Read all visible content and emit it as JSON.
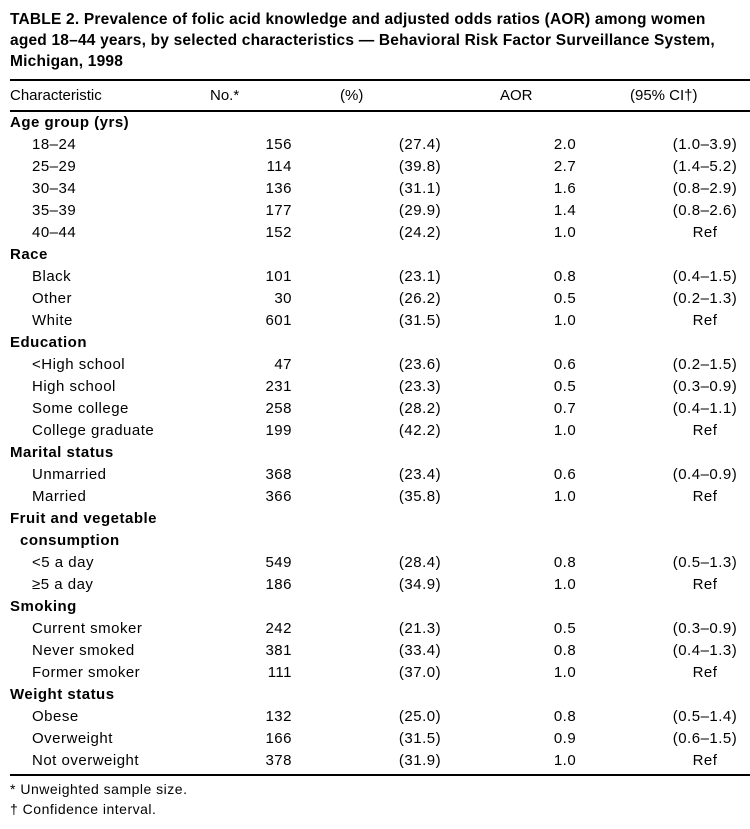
{
  "title": "TABLE 2. Prevalence of folic acid knowledge and adjusted odds ratios (AOR) among women aged 18–44 years, by selected characteristics — Behavioral Risk Factor Surveillance System, Michigan, 1998",
  "columns": {
    "characteristic": "Characteristic",
    "no": "No.*",
    "pct": "(%)",
    "aor": "AOR",
    "ci": "(95% CI†)"
  },
  "sections": [
    {
      "label": "Age group (yrs)",
      "rows": [
        {
          "c": "18–24",
          "n": "156",
          "p": "(27.4)",
          "a": "2.0",
          "ci": "(1.0–3.9)"
        },
        {
          "c": "25–29",
          "n": "114",
          "p": "(39.8)",
          "a": "2.7",
          "ci": "(1.4–5.2)"
        },
        {
          "c": "30–34",
          "n": "136",
          "p": "(31.1)",
          "a": "1.6",
          "ci": "(0.8–2.9)"
        },
        {
          "c": "35–39",
          "n": "177",
          "p": "(29.9)",
          "a": "1.4",
          "ci": "(0.8–2.6)"
        },
        {
          "c": "40–44",
          "n": "152",
          "p": "(24.2)",
          "a": "1.0",
          "ci": "Ref"
        }
      ]
    },
    {
      "label": "Race",
      "rows": [
        {
          "c": "Black",
          "n": "101",
          "p": "(23.1)",
          "a": "0.8",
          "ci": "(0.4–1.5)"
        },
        {
          "c": "Other",
          "n": "30",
          "p": "(26.2)",
          "a": "0.5",
          "ci": "(0.2–1.3)"
        },
        {
          "c": "White",
          "n": "601",
          "p": "(31.5)",
          "a": "1.0",
          "ci": "Ref"
        }
      ]
    },
    {
      "label": "Education",
      "rows": [
        {
          "c": "<High school",
          "n": "47",
          "p": "(23.6)",
          "a": "0.6",
          "ci": "(0.2–1.5)"
        },
        {
          "c": "High school",
          "n": "231",
          "p": "(23.3)",
          "a": "0.5",
          "ci": "(0.3–0.9)"
        },
        {
          "c": "Some college",
          "n": "258",
          "p": "(28.2)",
          "a": "0.7",
          "ci": "(0.4–1.1)"
        },
        {
          "c": "College graduate",
          "n": "199",
          "p": "(42.2)",
          "a": "1.0",
          "ci": "Ref"
        }
      ]
    },
    {
      "label": "Marital status",
      "rows": [
        {
          "c": "Unmarried",
          "n": "368",
          "p": "(23.4)",
          "a": "0.6",
          "ci": "(0.4–0.9)"
        },
        {
          "c": "Married",
          "n": "366",
          "p": "(35.8)",
          "a": "1.0",
          "ci": "Ref"
        }
      ]
    },
    {
      "label": "Fruit and vegetable",
      "label2": "consumption",
      "rows": [
        {
          "c": "<5 a day",
          "n": "549",
          "p": "(28.4)",
          "a": "0.8",
          "ci": "(0.5–1.3)"
        },
        {
          "c": "≥5 a day",
          "n": "186",
          "p": "(34.9)",
          "a": "1.0",
          "ci": "Ref"
        }
      ]
    },
    {
      "label": "Smoking",
      "rows": [
        {
          "c": "Current smoker",
          "n": "242",
          "p": "(21.3)",
          "a": "0.5",
          "ci": "(0.3–0.9)"
        },
        {
          "c": "Never smoked",
          "n": "381",
          "p": "(33.4)",
          "a": "0.8",
          "ci": "(0.4–1.3)"
        },
        {
          "c": "Former smoker",
          "n": "111",
          "p": "(37.0)",
          "a": "1.0",
          "ci": "Ref"
        }
      ]
    },
    {
      "label": "Weight status",
      "rows": [
        {
          "c": "Obese",
          "n": "132",
          "p": "(25.0)",
          "a": "0.8",
          "ci": "(0.5–1.4)"
        },
        {
          "c": "Overweight",
          "n": "166",
          "p": "(31.5)",
          "a": "0.9",
          "ci": "(0.6–1.5)"
        },
        {
          "c": "Not overweight",
          "n": "378",
          "p": "(31.9)",
          "a": "1.0",
          "ci": "Ref"
        }
      ]
    }
  ],
  "footnotes": [
    "* Unweighted sample size.",
    "† Confidence interval."
  ]
}
